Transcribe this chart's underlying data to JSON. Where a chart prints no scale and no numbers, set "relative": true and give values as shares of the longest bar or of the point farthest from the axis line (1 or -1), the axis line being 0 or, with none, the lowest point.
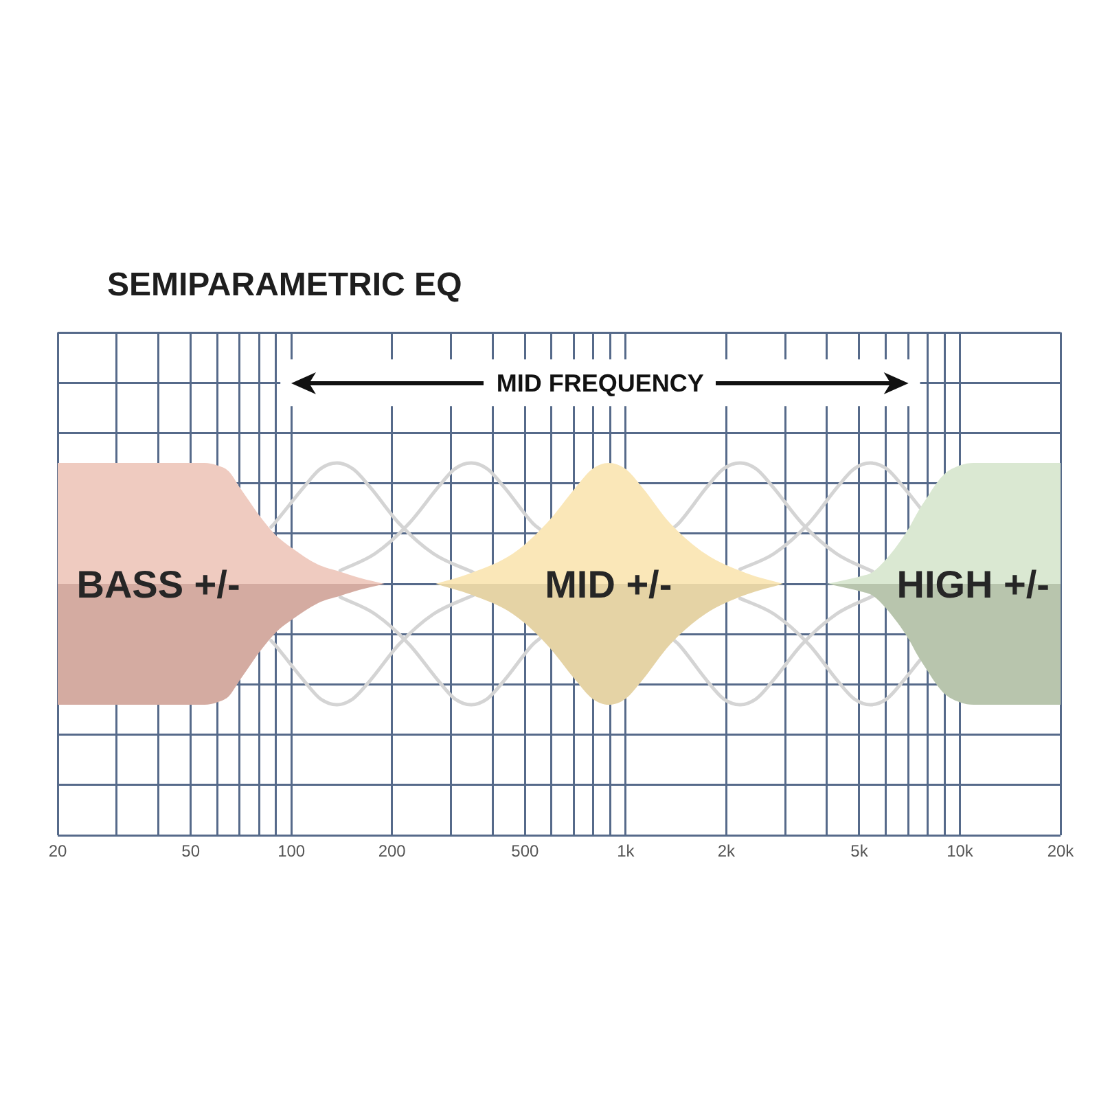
{
  "chart_data": {
    "type": "area",
    "title": "SEMIPARAMETRIC EQ",
    "annotations": [
      "MID FREQUENCY"
    ],
    "relative": true,
    "log": "x",
    "grid": true,
    "xlim": [
      20,
      20000
    ],
    "xticks": [
      20,
      {
        "value": 30,
        "label": null
      },
      {
        "value": 40,
        "label": null
      },
      50,
      {
        "value": 60,
        "label": null
      },
      {
        "value": 70,
        "label": null
      },
      {
        "value": 80,
        "label": null
      },
      {
        "value": 90,
        "label": null
      },
      100,
      200,
      {
        "value": 300,
        "label": null
      },
      {
        "value": 400,
        "label": null
      },
      500,
      {
        "value": 600,
        "label": null
      },
      {
        "value": 700,
        "label": null
      },
      {
        "value": 800,
        "label": null
      },
      {
        "value": 900,
        "label": null
      },
      {
        "value": 1000,
        "label": "1k"
      },
      {
        "value": 2000,
        "label": "2k"
      },
      {
        "value": 3000,
        "label": null
      },
      {
        "value": 4000,
        "label": null
      },
      {
        "value": 5000,
        "label": "5k"
      },
      {
        "value": 6000,
        "label": null
      },
      {
        "value": 7000,
        "label": null
      },
      {
        "value": 8000,
        "label": null
      },
      {
        "value": 9000,
        "label": null
      },
      {
        "value": 10000,
        "label": "10k"
      },
      {
        "value": 20000,
        "label": "20k"
      }
    ],
    "series": [
      {
        "type": "area",
        "name": "BASS +/-",
        "color": "#efcbc0",
        "x": [
          20,
          55,
          60,
          65,
          70,
          75,
          80,
          90,
          100,
          120,
          140,
          160,
          190
        ],
        "values": [
          1,
          1,
          0.98,
          0.93,
          0.8,
          0.68,
          0.57,
          0.4,
          0.3,
          0.16,
          0.1,
          0.05,
          0
        ]
      },
      {
        "type": "area",
        "color": "#d4aba1",
        "x": [
          20,
          55,
          60,
          65,
          70,
          75,
          80,
          90,
          100,
          120,
          140,
          160,
          190
        ],
        "values": [
          -1,
          -1,
          -0.98,
          -0.93,
          -0.8,
          -0.68,
          -0.57,
          -0.4,
          -0.3,
          -0.16,
          -0.1,
          -0.05,
          0
        ]
      },
      {
        "type": "area",
        "name": "MID +/-",
        "color": "#fae7b8",
        "x": [
          270,
          345,
          460,
          580,
          710,
          795,
          890,
          1000,
          1120,
          1360,
          1730,
          2290,
          2960
        ],
        "values": [
          0,
          0.09,
          0.25,
          0.5,
          0.8,
          0.95,
          1,
          0.95,
          0.8,
          0.5,
          0.25,
          0.09,
          0
        ]
      },
      {
        "type": "area",
        "color": "#e5d3a5",
        "x": [
          270,
          345,
          460,
          580,
          710,
          795,
          890,
          1000,
          1120,
          1360,
          1730,
          2290,
          2960
        ],
        "values": [
          0,
          -0.09,
          -0.25,
          -0.5,
          -0.8,
          -0.95,
          -1,
          -0.95,
          -0.8,
          -0.5,
          -0.25,
          -0.09,
          0
        ]
      },
      {
        "type": "area",
        "name": "HIGH +/-",
        "color": "#dae8d2",
        "x": [
          4000,
          4500,
          5000,
          5500,
          6000,
          6500,
          7000,
          7500,
          8000,
          8500,
          9000,
          10000,
          11000,
          20000
        ],
        "values": [
          0,
          0.03,
          0.06,
          0.1,
          0.2,
          0.32,
          0.45,
          0.6,
          0.72,
          0.83,
          0.91,
          0.98,
          1,
          1
        ]
      },
      {
        "type": "area",
        "color": "#b8c5ad",
        "x": [
          4000,
          4500,
          5000,
          5500,
          6000,
          6500,
          7000,
          7500,
          8000,
          8500,
          9000,
          10000,
          11000,
          20000
        ],
        "values": [
          0,
          -0.03,
          -0.06,
          -0.1,
          -0.2,
          -0.32,
          -0.45,
          -0.6,
          -0.72,
          -0.83,
          -0.91,
          -0.98,
          -1,
          -1
        ]
      },
      {
        "type": "line",
        "color": "#d4d4d4",
        "x": [
          87,
          89,
          109,
          122,
          137,
          153,
          172,
          210,
          266,
          353
        ],
        "values": [
          0.47,
          0.5,
          0.8,
          0.95,
          1,
          0.95,
          0.8,
          0.5,
          0.25,
          0.09
        ]
      },
      {
        "type": "line",
        "color": "#d4d4d4",
        "x": [
          87,
          89,
          109,
          122,
          137,
          153,
          172,
          210,
          266,
          353
        ],
        "values": [
          -0.47,
          -0.5,
          -0.8,
          -0.95,
          -1,
          -0.95,
          -0.8,
          -0.5,
          -0.25,
          -0.09
        ]
      },
      {
        "type": "line",
        "color": "#d4d4d4",
        "x": [
          140,
          178,
          225,
          275,
          308,
          345,
          386,
          433,
          528,
          555
        ],
        "values": [
          0.11,
          0.25,
          0.5,
          0.8,
          0.95,
          1,
          0.95,
          0.8,
          0.5,
          0.45
        ]
      },
      {
        "type": "line",
        "color": "#d4d4d4",
        "x": [
          140,
          178,
          225,
          275,
          308,
          345,
          386,
          433,
          528,
          555
        ],
        "values": [
          -0.11,
          -0.25,
          -0.5,
          -0.8,
          -0.95,
          -1,
          -0.95,
          -0.8,
          -0.5,
          -0.45
        ]
      },
      {
        "type": "line",
        "color": "#d4d4d4",
        "x": [
          1400,
          1440,
          1750,
          1960,
          2200,
          2460,
          2760,
          3370,
          4270,
          5500
        ],
        "values": [
          0.47,
          0.5,
          0.8,
          0.95,
          1,
          0.95,
          0.8,
          0.5,
          0.25,
          0.1
        ]
      },
      {
        "type": "line",
        "color": "#d4d4d4",
        "x": [
          1400,
          1440,
          1750,
          1960,
          2200,
          2460,
          2760,
          3370,
          4270,
          5500
        ],
        "values": [
          -0.47,
          -0.5,
          -0.8,
          -0.95,
          -1,
          -0.95,
          -0.8,
          -0.5,
          -0.25,
          -0.1
        ]
      },
      {
        "type": "line",
        "color": "#d4d4d4",
        "x": [
          2200,
          2780,
          3530,
          4300,
          4820,
          5400,
          6050,
          6780,
          7600
        ],
        "values": [
          0.12,
          0.25,
          0.5,
          0.8,
          0.95,
          1,
          0.95,
          0.8,
          0.63
        ]
      },
      {
        "type": "line",
        "color": "#d4d4d4",
        "x": [
          2200,
          2780,
          3530,
          4300,
          4820,
          5400,
          6050,
          6780,
          7600
        ],
        "values": [
          -0.12,
          -0.25,
          -0.5,
          -0.8,
          -0.95,
          -1,
          -0.95,
          -0.8,
          -0.63
        ]
      }
    ]
  }
}
